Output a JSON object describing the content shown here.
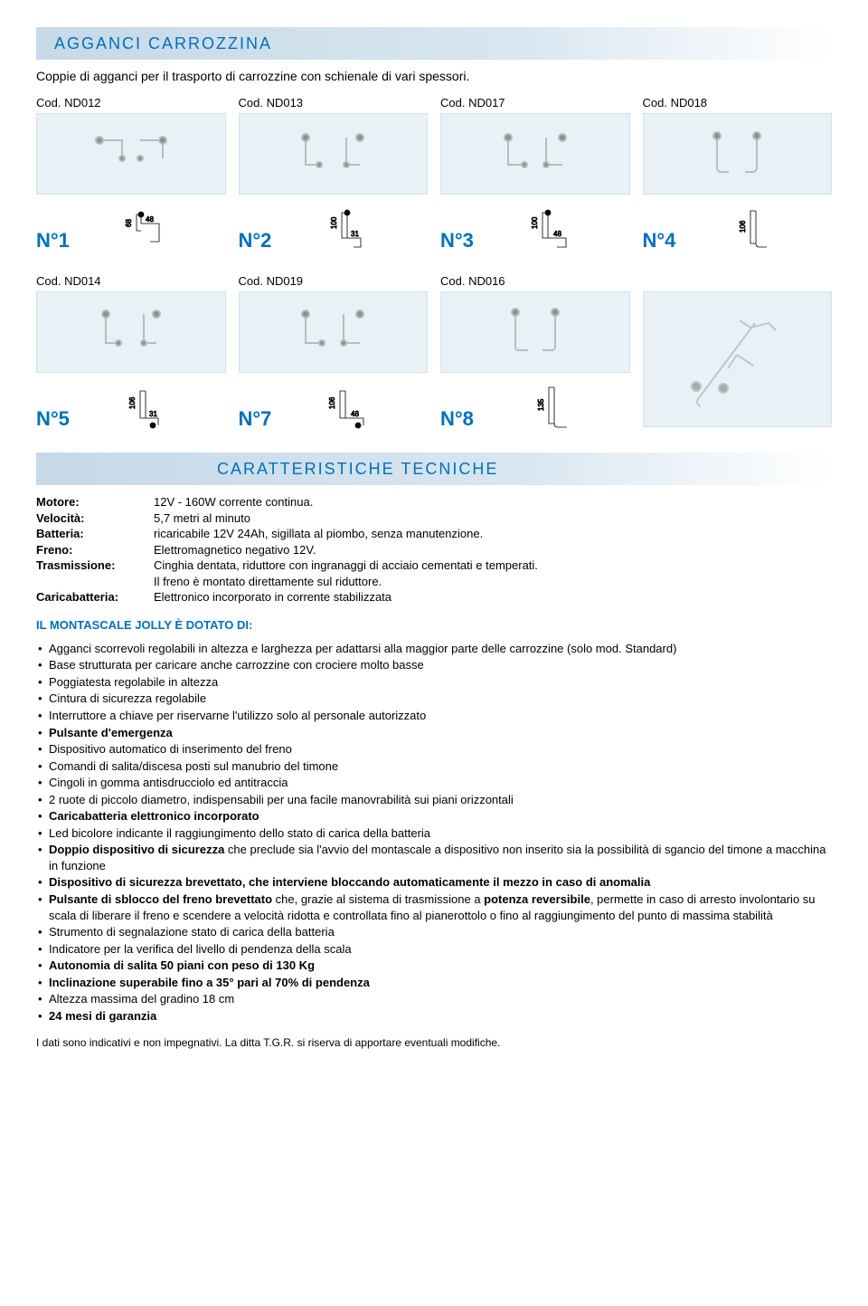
{
  "colors": {
    "accent": "#0070b8",
    "panel_bg": "#e8f2f6",
    "panel_border": "#cfe2ec",
    "header_gradient_start": "#c5d9e8",
    "header_gradient_end": "#ffffff",
    "text": "#000000"
  },
  "section1": {
    "title": "AGGANCI CARROZZINA",
    "intro": "Coppie di agganci per il trasporto di carrozzine con schienale di vari spessori."
  },
  "products_row1": [
    {
      "code": "Cod. ND012",
      "n_label": "N°1",
      "dims": {
        "v": "68",
        "h": "48"
      }
    },
    {
      "code": "Cod. ND013",
      "n_label": "N°2",
      "dims": {
        "v": "100",
        "h": "31"
      }
    },
    {
      "code": "Cod. ND017",
      "n_label": "N°3",
      "dims": {
        "v": "100",
        "h": "48"
      }
    },
    {
      "code": "Cod. ND018",
      "n_label": "N°4",
      "dims": {
        "v": "106",
        "h": ""
      }
    }
  ],
  "products_row2": [
    {
      "code": "Cod. ND014",
      "n_label": "N°5",
      "dims": {
        "v": "106",
        "h": "31"
      }
    },
    {
      "code": "Cod. ND019",
      "n_label": "N°7",
      "dims": {
        "v": "106",
        "h": "48"
      }
    },
    {
      "code": "Cod. ND016",
      "n_label": "N°8",
      "dims": {
        "v": "135",
        "h": ""
      }
    },
    {
      "code": "",
      "n_label": "",
      "dims": {
        "v": "",
        "h": ""
      }
    }
  ],
  "section2": {
    "title": "CARATTERISTICHE TECNICHE"
  },
  "specs": {
    "motore_label": "Motore:",
    "motore_val": "12V - 160W corrente continua.",
    "velocita_label": "Velocità:",
    "velocita_val": "5,7 metri al minuto",
    "batteria_label": "Batteria:",
    "batteria_val": "ricaricabile 12V 24Ah, sigillata al piombo, senza manutenzione.",
    "freno_label": "Freno:",
    "freno_val": "Elettromagnetico negativo 12V.",
    "trasmissione_label": "Trasmissione:",
    "trasmissione_val": "Cinghia dentata, riduttore con ingranaggi di acciaio cementati e temperati.",
    "trasmissione_val2": "Il freno è montato direttamente sul riduttore.",
    "caricabatteria_label": "Caricabatteria:",
    "caricabatteria_val": "Elettronico incorporato in corrente stabilizzata"
  },
  "features_title": "IL MONTASCALE JOLLY È DOTATO DI:",
  "features": [
    {
      "pre": "Agganci scorrevoli regolabili in altezza e larghezza per adattarsi alla maggior parte delle carrozzine (solo mod. Standard)"
    },
    {
      "pre": "Base strutturata per caricare anche carrozzine con crociere molto basse"
    },
    {
      "pre": "Poggiatesta regolabile in altezza"
    },
    {
      "pre": "Cintura di sicurezza regolabile"
    },
    {
      "pre": "Interruttore a chiave per riservarne l'utilizzo solo al personale autorizzato"
    },
    {
      "bold": "Pulsante d'emergenza"
    },
    {
      "pre": "Dispositivo automatico di inserimento del freno"
    },
    {
      "pre": "Comandi di salita/discesa posti sul manubrio del timone"
    },
    {
      "pre": "Cingoli in gomma antisdrucciolo ed antitraccia"
    },
    {
      "pre": "2 ruote di piccolo diametro, indispensabili per una facile manovrabilità sui piani orizzontali"
    },
    {
      "bold": "Caricabatteria elettronico incorporato"
    },
    {
      "pre": "Led bicolore indicante il raggiungimento dello stato di carica della batteria"
    },
    {
      "bold": "Doppio dispositivo di sicurezza",
      "post": " che preclude sia l'avvio del montascale a dispositivo non inserito sia la possibilità di sgancio del timone a macchina in funzione"
    },
    {
      "bold": "Dispositivo di sicurezza brevettato, che interviene bloccando automaticamente il mezzo in caso di anomalia"
    },
    {
      "bold": "Pulsante di sblocco del freno brevettato",
      "post": " che, grazie al sistema di trasmissione a ",
      "bold2": "potenza reversibile",
      "post2": ", permette in caso di arresto involontario su scala di liberare il freno e scendere a velocità ridotta e controllata fino al pianerottolo o fino al raggiungimento del punto di massima stabilità"
    },
    {
      "pre": "Strumento di segnalazione stato di carica della batteria"
    },
    {
      "pre": "Indicatore per la verifica del livello di pendenza della scala"
    },
    {
      "bold": "Autonomia di salita 50 piani con peso di 130 Kg"
    },
    {
      "bold": "Inclinazione superabile fino a 35° pari al 70% di pendenza"
    },
    {
      "pre": "Altezza massima del gradino 18 cm"
    },
    {
      "bold": "24 mesi di garanzia"
    }
  ],
  "disclaimer": "I dati sono indicativi e non impegnativi. La ditta T.G.R. si riserva di apportare eventuali modifiche."
}
